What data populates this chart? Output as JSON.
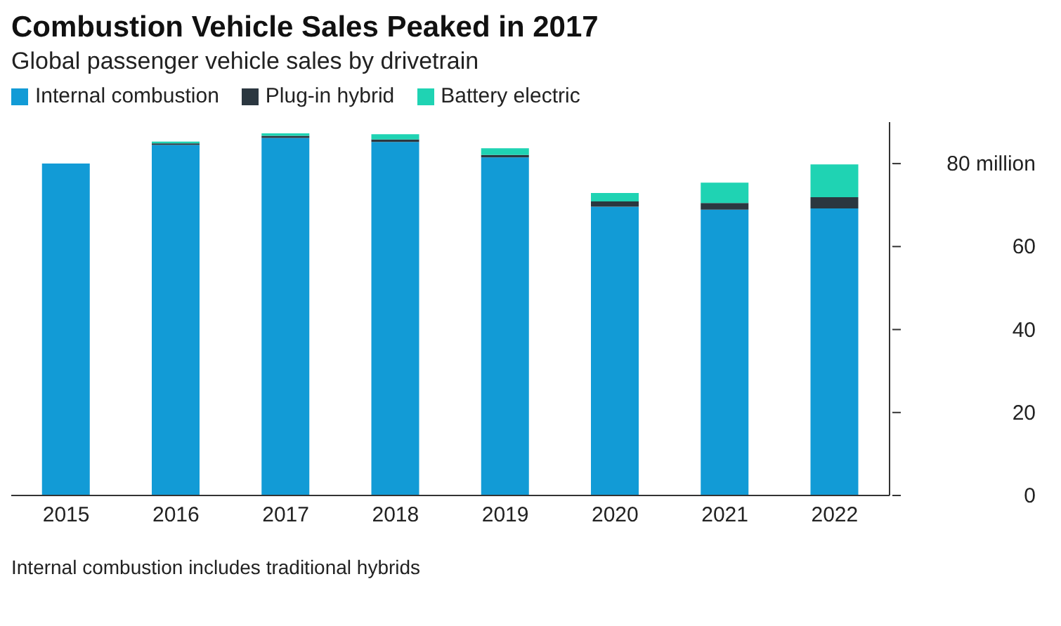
{
  "chart_data": {
    "type": "bar",
    "stacked": true,
    "title": "Combustion Vehicle Sales Peaked in 2017",
    "subtitle": "Global passenger vehicle sales by drivetrain",
    "categories": [
      "2015",
      "2016",
      "2017",
      "2018",
      "2019",
      "2020",
      "2021",
      "2022"
    ],
    "series": [
      {
        "name": "Internal combustion",
        "color": "#129bd6",
        "values": [
          80,
          84.5,
          86.2,
          85.2,
          81.5,
          69.6,
          68.9,
          69.2
        ]
      },
      {
        "name": "Plug-in hybrid",
        "color": "#2b3740",
        "values": [
          null,
          0.4,
          0.5,
          0.6,
          0.6,
          1.3,
          1.6,
          2.7
        ]
      },
      {
        "name": "Battery electric",
        "color": "#1fd3b3",
        "values": [
          null,
          0.4,
          0.6,
          1.3,
          1.6,
          2.0,
          4.9,
          7.9
        ]
      }
    ],
    "ylim": [
      0,
      90
    ],
    "yticks": [
      0,
      20,
      40,
      60,
      {
        "value": 80,
        "label": "80 million"
      }
    ],
    "grid": false,
    "legend": "top left",
    "annotations": [
      "Internal combustion includes traditional hybrids"
    ]
  }
}
